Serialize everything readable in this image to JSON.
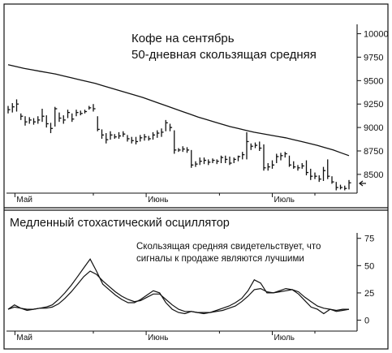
{
  "chart_data": [
    {
      "type": "line",
      "title": "Кофе на сентябрь",
      "subtitle": "50-дневная скользящая средняя",
      "x_labels": [
        "Май",
        "Июнь",
        "Июль"
      ],
      "y_ticks": [
        10000,
        9750,
        9500,
        9250,
        9000,
        8750,
        8500
      ],
      "ylim": [
        8300,
        10100
      ],
      "series": [
        {
          "type": "ohlc",
          "bars": [
            {
              "h": 9230,
              "l": 9150,
              "c": 9190
            },
            {
              "h": 9260,
              "l": 9160,
              "c": 9220
            },
            {
              "h": 9300,
              "l": 9170,
              "c": 9250
            },
            {
              "h": 9150,
              "l": 9080,
              "c": 9120
            },
            {
              "h": 9120,
              "l": 9020,
              "c": 9060
            },
            {
              "h": 9110,
              "l": 9040,
              "c": 9080
            },
            {
              "h": 9100,
              "l": 9030,
              "c": 9060
            },
            {
              "h": 9120,
              "l": 9040,
              "c": 9080
            },
            {
              "h": 9200,
              "l": 9060,
              "c": 9120
            },
            {
              "h": 9130,
              "l": 9000,
              "c": 9040
            },
            {
              "h": 9050,
              "l": 8940,
              "c": 8990
            },
            {
              "h": 9220,
              "l": 9010,
              "c": 9200
            },
            {
              "h": 9160,
              "l": 9060,
              "c": 9100
            },
            {
              "h": 9130,
              "l": 9040,
              "c": 9080
            },
            {
              "h": 9190,
              "l": 9100,
              "c": 9160
            },
            {
              "h": 9150,
              "l": 9060,
              "c": 9090
            },
            {
              "h": 9190,
              "l": 9120,
              "c": 9160
            },
            {
              "h": 9180,
              "l": 9130,
              "c": 9150
            },
            {
              "h": 9190,
              "l": 9150,
              "c": 9170
            },
            {
              "h": 9230,
              "l": 9190,
              "c": 9210
            },
            {
              "h": 9250,
              "l": 9170,
              "c": 9200
            },
            {
              "h": 9120,
              "l": 8960,
              "c": 8980
            },
            {
              "h": 8980,
              "l": 8880,
              "c": 8920
            },
            {
              "h": 8940,
              "l": 8830,
              "c": 8870
            },
            {
              "h": 8960,
              "l": 8870,
              "c": 8920
            },
            {
              "h": 8930,
              "l": 8880,
              "c": 8900
            },
            {
              "h": 8950,
              "l": 8880,
              "c": 8910
            },
            {
              "h": 8960,
              "l": 8900,
              "c": 8930
            },
            {
              "h": 8920,
              "l": 8850,
              "c": 8880
            },
            {
              "h": 8900,
              "l": 8830,
              "c": 8860
            },
            {
              "h": 8900,
              "l": 8820,
              "c": 8850
            },
            {
              "h": 8920,
              "l": 8850,
              "c": 8890
            },
            {
              "h": 8930,
              "l": 8860,
              "c": 8900
            },
            {
              "h": 8910,
              "l": 8860,
              "c": 8880
            },
            {
              "h": 8950,
              "l": 8870,
              "c": 8920
            },
            {
              "h": 8970,
              "l": 8890,
              "c": 8940
            },
            {
              "h": 8990,
              "l": 8900,
              "c": 8950
            },
            {
              "h": 9080,
              "l": 8960,
              "c": 9050
            },
            {
              "h": 9040,
              "l": 8960,
              "c": 9000
            },
            {
              "h": 8970,
              "l": 8720,
              "c": 8760
            },
            {
              "h": 8780,
              "l": 8740,
              "c": 8760
            },
            {
              "h": 8800,
              "l": 8740,
              "c": 8770
            },
            {
              "h": 8790,
              "l": 8730,
              "c": 8760
            },
            {
              "h": 8760,
              "l": 8570,
              "c": 8600
            },
            {
              "h": 8640,
              "l": 8580,
              "c": 8610
            },
            {
              "h": 8680,
              "l": 8600,
              "c": 8640
            },
            {
              "h": 8680,
              "l": 8610,
              "c": 8650
            },
            {
              "h": 8660,
              "l": 8600,
              "c": 8630
            },
            {
              "h": 8670,
              "l": 8620,
              "c": 8650
            },
            {
              "h": 8660,
              "l": 8610,
              "c": 8640
            },
            {
              "h": 8700,
              "l": 8620,
              "c": 8680
            },
            {
              "h": 8700,
              "l": 8620,
              "c": 8660
            },
            {
              "h": 8690,
              "l": 8600,
              "c": 8620
            },
            {
              "h": 8680,
              "l": 8620,
              "c": 8660
            },
            {
              "h": 8700,
              "l": 8640,
              "c": 8690
            },
            {
              "h": 8740,
              "l": 8660,
              "c": 8710
            },
            {
              "h": 8950,
              "l": 8660,
              "c": 8850
            },
            {
              "h": 8830,
              "l": 8760,
              "c": 8800
            },
            {
              "h": 8840,
              "l": 8780,
              "c": 8810
            },
            {
              "h": 8850,
              "l": 8750,
              "c": 8780
            },
            {
              "h": 8820,
              "l": 8540,
              "c": 8570
            },
            {
              "h": 8620,
              "l": 8540,
              "c": 8580
            },
            {
              "h": 8650,
              "l": 8560,
              "c": 8600
            },
            {
              "h": 8720,
              "l": 8620,
              "c": 8690
            },
            {
              "h": 8730,
              "l": 8650,
              "c": 8700
            },
            {
              "h": 8740,
              "l": 8680,
              "c": 8720
            },
            {
              "h": 8700,
              "l": 8580,
              "c": 8600
            },
            {
              "h": 8640,
              "l": 8560,
              "c": 8580
            },
            {
              "h": 8600,
              "l": 8540,
              "c": 8570
            },
            {
              "h": 8620,
              "l": 8560,
              "c": 8590
            },
            {
              "h": 8650,
              "l": 8490,
              "c": 8520
            },
            {
              "h": 8560,
              "l": 8440,
              "c": 8480
            },
            {
              "h": 8520,
              "l": 8450,
              "c": 8480
            },
            {
              "h": 8490,
              "l": 8420,
              "c": 8450
            },
            {
              "h": 8580,
              "l": 8430,
              "c": 8540
            },
            {
              "h": 8660,
              "l": 8450,
              "c": 8480
            },
            {
              "h": 8480,
              "l": 8400,
              "c": 8420
            },
            {
              "h": 8420,
              "l": 8330,
              "c": 8360
            },
            {
              "h": 8390,
              "l": 8340,
              "c": 8360
            },
            {
              "h": 8380,
              "l": 8330,
              "c": 8350
            },
            {
              "h": 8440,
              "l": 8340,
              "c": 8410
            }
          ]
        },
        {
          "type": "line",
          "values": [
            9670,
            9650,
            9630,
            9615,
            9600,
            9585,
            9570,
            9550,
            9530,
            9510,
            9490,
            9470,
            9445,
            9420,
            9395,
            9370,
            9345,
            9320,
            9290,
            9260,
            9230,
            9200,
            9170,
            9140,
            9110,
            9085,
            9060,
            9035,
            9010,
            8990,
            8970,
            8950,
            8935,
            8920,
            8905,
            8890,
            8870,
            8850,
            8830,
            8810,
            8785,
            8760,
            8730,
            8700
          ]
        }
      ]
    },
    {
      "type": "line",
      "title": "Медленный стохастический осциллятор",
      "annotation": [
        "Скользящая средняя свидетельствует, что",
        "сигналы к продаже являются лучшими"
      ],
      "x_labels": [
        "Май",
        "Июнь",
        "Июль"
      ],
      "y_ticks": [
        75,
        50,
        25,
        0
      ],
      "ylim": [
        -10,
        80
      ],
      "series": [
        {
          "values": [
            10,
            14,
            11,
            9,
            10,
            11,
            12,
            14,
            19,
            25,
            32,
            40,
            48,
            56,
            45,
            33,
            28,
            23,
            19,
            16,
            16,
            19,
            23,
            27,
            25,
            16,
            10,
            7,
            6,
            8,
            7,
            6,
            7,
            9,
            11,
            13,
            16,
            20,
            27,
            37,
            34,
            25,
            25,
            27,
            29,
            28,
            24,
            18,
            12,
            10,
            6,
            10,
            8,
            9,
            10
          ]
        },
        {
          "values": [
            10,
            12,
            11,
            10,
            10,
            11,
            11,
            12,
            15,
            20,
            26,
            33,
            40,
            45,
            42,
            36,
            31,
            26,
            22,
            19,
            17,
            18,
            21,
            24,
            24,
            19,
            14,
            10,
            8,
            8,
            7,
            7,
            7,
            8,
            9,
            11,
            13,
            17,
            22,
            28,
            29,
            26,
            25,
            26,
            27,
            28,
            26,
            21,
            17,
            13,
            11,
            10,
            9,
            10,
            10
          ]
        }
      ]
    }
  ]
}
